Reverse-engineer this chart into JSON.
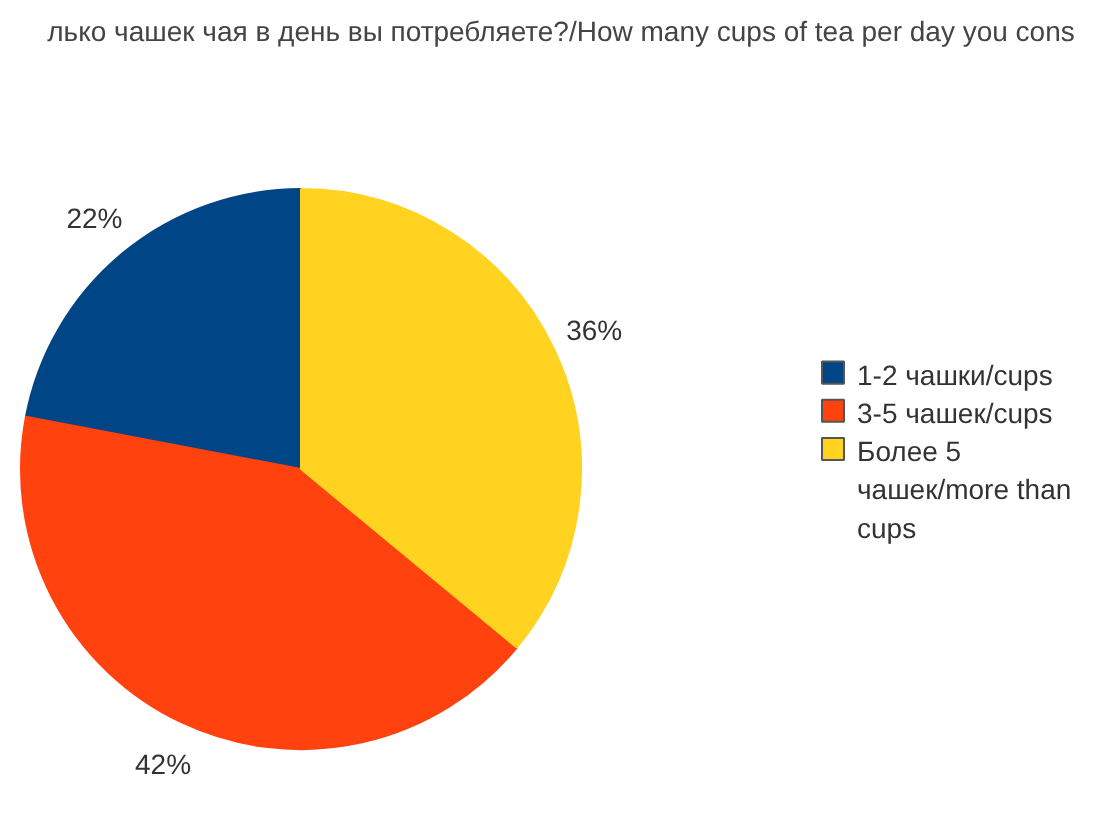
{
  "chart_data": {
    "type": "pie",
    "title": "лько чашек чая в день вы потребляете?/How many cups of tea per day you cons",
    "categories": [
      "1-2 чашки/cups",
      "3-5 чашек/cups",
      "Более 5 чашек/more than cups"
    ],
    "values": [
      22,
      42,
      36
    ],
    "colors": [
      "#004586",
      "#ff420e",
      "#ffd320"
    ],
    "value_labels": [
      "22%",
      "42%",
      "36%"
    ],
    "legend": "right"
  }
}
